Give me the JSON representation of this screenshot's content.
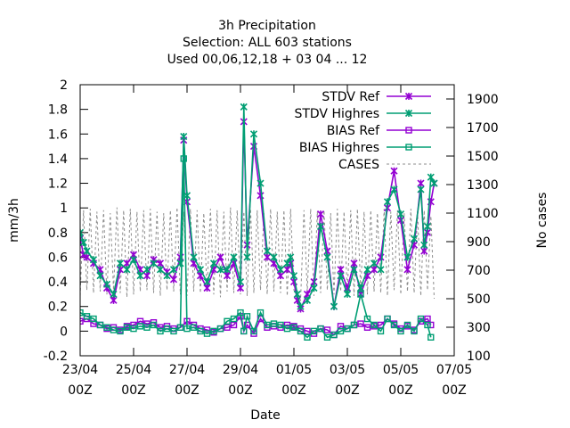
{
  "chart_data": {
    "type": "line",
    "title_lines": [
      "3h Precipitation",
      "Selection: ALL    603 stations",
      "Used  00,06,12,18 + 03 04 ... 12"
    ],
    "xlabel": "Date",
    "ylabel": "mm/3h",
    "y2label": "No cases",
    "x_ticks": [
      {
        "top": "23/04",
        "bottom": "00Z"
      },
      {
        "top": "25/04",
        "bottom": "00Z"
      },
      {
        "top": "27/04",
        "bottom": "00Z"
      },
      {
        "top": "29/04",
        "bottom": "00Z"
      },
      {
        "top": "01/05",
        "bottom": "00Z"
      },
      {
        "top": "03/05",
        "bottom": "00Z"
      },
      {
        "top": "05/05",
        "bottom": "00Z"
      },
      {
        "top": "07/05",
        "bottom": "00Z"
      }
    ],
    "xlim_days": [
      0,
      14
    ],
    "ylim": [
      -0.2,
      2.0
    ],
    "y_ticks": [
      "-0.2",
      "0",
      "0.2",
      "0.4",
      "0.6",
      "0.8",
      "1",
      "1.2",
      "1.4",
      "1.6",
      "1.8",
      "2"
    ],
    "y2lim": [
      100,
      2000
    ],
    "y2_ticks": [
      "100",
      "300",
      "500",
      "700",
      "900",
      "1100",
      "1300",
      "1500",
      "1700",
      "1900"
    ],
    "legend_position": "top-right",
    "series": [
      {
        "name": "STDV Ref",
        "color": "#9400D3",
        "marker": "x",
        "axis": "y",
        "x": [
          0,
          0.125,
          0.25,
          0.5,
          0.75,
          1,
          1.25,
          1.5,
          1.75,
          2,
          2.25,
          2.5,
          2.75,
          3,
          3.25,
          3.5,
          3.75,
          3.875,
          4,
          4.25,
          4.5,
          4.75,
          5,
          5.25,
          5.5,
          5.75,
          6,
          6.125,
          6.25,
          6.5,
          6.75,
          7,
          7.25,
          7.5,
          7.75,
          7.875,
          8,
          8.125,
          8.25,
          8.5,
          8.75,
          9,
          9.25,
          9.5,
          9.75,
          10,
          10.25,
          10.5,
          10.75,
          11,
          11.25,
          11.5,
          11.75,
          12,
          12.25,
          12.5,
          12.75,
          12.875,
          13,
          13.125,
          13.25
        ],
        "y": [
          0.75,
          0.62,
          0.6,
          0.55,
          0.5,
          0.35,
          0.25,
          0.5,
          0.55,
          0.62,
          0.5,
          0.45,
          0.58,
          0.55,
          0.48,
          0.42,
          0.6,
          1.55,
          1.05,
          0.55,
          0.45,
          0.35,
          0.5,
          0.6,
          0.45,
          0.55,
          0.35,
          1.7,
          0.7,
          1.5,
          1.1,
          0.6,
          0.55,
          0.45,
          0.5,
          0.55,
          0.4,
          0.25,
          0.18,
          0.3,
          0.4,
          0.95,
          0.65,
          0.2,
          0.5,
          0.35,
          0.55,
          0.3,
          0.45,
          0.5,
          0.6,
          1.0,
          1.3,
          0.9,
          0.5,
          0.7,
          1.2,
          0.65,
          0.8,
          1.05,
          1.2
        ]
      },
      {
        "name": "STDV Highres",
        "color": "#009E73",
        "marker": "x",
        "axis": "y",
        "x": [
          0,
          0.125,
          0.25,
          0.5,
          0.75,
          1,
          1.25,
          1.5,
          1.75,
          2,
          2.25,
          2.5,
          2.75,
          3,
          3.25,
          3.5,
          3.75,
          3.875,
          4,
          4.25,
          4.5,
          4.75,
          5,
          5.25,
          5.5,
          5.75,
          6,
          6.125,
          6.25,
          6.5,
          6.75,
          7,
          7.25,
          7.5,
          7.75,
          7.875,
          8,
          8.125,
          8.25,
          8.5,
          8.75,
          9,
          9.25,
          9.5,
          9.75,
          10,
          10.25,
          10.5,
          10.75,
          11,
          11.25,
          11.5,
          11.75,
          12,
          12.25,
          12.5,
          12.75,
          12.875,
          13,
          13.125,
          13.25
        ],
        "y": [
          0.8,
          0.72,
          0.65,
          0.58,
          0.45,
          0.38,
          0.3,
          0.55,
          0.5,
          0.58,
          0.45,
          0.5,
          0.55,
          0.5,
          0.45,
          0.5,
          0.55,
          1.58,
          1.1,
          0.6,
          0.5,
          0.4,
          0.55,
          0.5,
          0.5,
          0.6,
          0.4,
          1.82,
          0.6,
          1.6,
          1.2,
          0.65,
          0.6,
          0.5,
          0.55,
          0.6,
          0.45,
          0.3,
          0.2,
          0.25,
          0.35,
          0.85,
          0.6,
          0.2,
          0.45,
          0.3,
          0.5,
          0.35,
          0.5,
          0.55,
          0.5,
          1.05,
          1.15,
          0.95,
          0.6,
          0.75,
          1.15,
          0.7,
          0.85,
          1.25,
          1.2
        ]
      },
      {
        "name": "BIAS Ref",
        "color": "#9400D3",
        "marker": "square",
        "axis": "y",
        "x": [
          0,
          0.25,
          0.5,
          0.75,
          1,
          1.25,
          1.5,
          1.75,
          2,
          2.25,
          2.5,
          2.75,
          3,
          3.25,
          3.5,
          3.75,
          4,
          4.25,
          4.5,
          4.75,
          5,
          5.25,
          5.5,
          5.75,
          6,
          6.125,
          6.25,
          6.5,
          6.75,
          7,
          7.25,
          7.5,
          7.75,
          8,
          8.25,
          8.5,
          8.75,
          9,
          9.25,
          9.5,
          9.75,
          10,
          10.25,
          10.5,
          10.75,
          11,
          11.25,
          11.5,
          11.75,
          12,
          12.25,
          12.5,
          12.75,
          13,
          13.125
        ],
        "y": [
          0.08,
          0.1,
          0.06,
          0.05,
          0.02,
          0.03,
          0.01,
          0.04,
          0.05,
          0.08,
          0.06,
          0.07,
          0.03,
          0.04,
          0.02,
          0.03,
          0.08,
          0.05,
          0.02,
          0.01,
          -0.01,
          0.02,
          0.03,
          0.05,
          0.12,
          0.0,
          0.05,
          -0.02,
          0.1,
          0.03,
          0.04,
          0.03,
          0.05,
          0.04,
          0.02,
          0.0,
          -0.02,
          0.02,
          0.01,
          -0.03,
          0.04,
          0.02,
          0.05,
          0.06,
          0.03,
          0.04,
          0.05,
          0.1,
          0.06,
          0.02,
          0.04,
          0.01,
          0.08,
          0.1,
          0.05
        ]
      },
      {
        "name": "BIAS Highres",
        "color": "#009E73",
        "marker": "square",
        "axis": "y",
        "x": [
          0,
          0.25,
          0.5,
          0.75,
          1,
          1.25,
          1.5,
          1.75,
          2,
          2.25,
          2.5,
          2.75,
          3,
          3.25,
          3.5,
          3.75,
          3.875,
          4,
          4.25,
          4.5,
          4.75,
          5,
          5.25,
          5.5,
          5.75,
          6,
          6.125,
          6.25,
          6.5,
          6.75,
          7,
          7.25,
          7.5,
          7.75,
          8,
          8.25,
          8.5,
          8.75,
          9,
          9.25,
          9.5,
          9.75,
          10,
          10.25,
          10.5,
          10.75,
          11,
          11.25,
          11.5,
          11.75,
          12,
          12.25,
          12.5,
          12.75,
          13,
          13.125
        ],
        "y": [
          0.15,
          0.12,
          0.1,
          0.05,
          0.03,
          0.01,
          0.0,
          0.03,
          0.02,
          0.04,
          0.03,
          0.05,
          0.0,
          0.02,
          0.0,
          0.03,
          1.4,
          0.02,
          0.03,
          0.0,
          -0.02,
          0.0,
          0.02,
          0.08,
          0.1,
          0.15,
          0.0,
          0.12,
          0.0,
          0.15,
          0.05,
          0.06,
          0.05,
          0.02,
          0.03,
          0.0,
          -0.05,
          0.0,
          0.02,
          -0.05,
          -0.03,
          0.0,
          0.02,
          0.05,
          0.3,
          0.1,
          0.05,
          0.0,
          0.1,
          0.05,
          0.0,
          0.05,
          0.0,
          0.1,
          0.05,
          -0.05
        ]
      },
      {
        "name": "CASES",
        "color": "#8c8c8c",
        "marker": "none",
        "dash": true,
        "axis": "y2",
        "x": [
          0,
          0.125,
          0.25,
          0.375,
          0.5,
          0.625,
          0.75,
          0.875,
          1,
          1.125,
          1.25,
          1.375,
          1.5,
          1.625,
          1.75,
          1.875,
          2,
          2.125,
          2.25,
          2.375,
          2.5,
          2.625,
          2.75,
          2.875,
          3,
          3.125,
          3.25,
          3.375,
          3.5,
          3.625,
          3.75,
          3.875,
          4,
          4.125,
          4.25,
          4.375,
          4.5,
          4.625,
          4.75,
          4.875,
          5,
          5.125,
          5.25,
          5.375,
          5.5,
          5.625,
          5.75,
          5.875,
          6,
          6.125,
          6.25,
          6.375,
          6.5,
          6.625,
          6.75,
          6.875,
          7,
          7.125,
          7.25,
          7.375,
          7.5,
          7.625,
          7.75,
          7.875,
          8,
          8.25,
          8.375,
          8.5,
          8.625,
          8.75,
          8.875,
          9,
          9.125,
          9.25,
          9.375,
          9.5,
          9.625,
          9.75,
          9.875,
          10,
          10.125,
          10.25,
          10.375,
          10.5,
          10.625,
          10.75,
          10.875,
          11,
          11.125,
          11.25,
          11.375,
          11.5,
          11.625,
          11.75,
          11.875,
          12,
          12.125,
          12.25,
          12.375,
          12.5,
          12.625,
          12.75,
          12.875,
          13,
          13.125,
          13.25
        ],
        "y": [
          520,
          1120,
          560,
          1130,
          540,
          1110,
          550,
          1120,
          530,
          1100,
          560,
          1140,
          540,
          1120,
          510,
          1130,
          530,
          1110,
          550,
          1120,
          560,
          1130,
          540,
          1110,
          520,
          1100,
          560,
          1120,
          550,
          1140,
          530,
          1110,
          520,
          1130,
          550,
          1120,
          540,
          1100,
          560,
          1130,
          530,
          1120,
          510,
          1110,
          550,
          1140,
          540,
          1120,
          530,
          1110,
          520,
          1130,
          540,
          1120,
          560,
          1100,
          530,
          1130,
          550,
          1110,
          540,
          1120,
          520,
          1130,
          560,
          490,
          1120,
          550,
          1130,
          520,
          1110,
          540,
          1120,
          560,
          1100,
          530,
          1130,
          550,
          1110,
          540,
          1120,
          520,
          1130,
          560,
          1110,
          530,
          1120,
          550,
          1100,
          540,
          1130,
          520,
          1110,
          560,
          1120,
          530,
          1100,
          550,
          1130,
          540,
          1110,
          520,
          1120,
          560,
          1080,
          500
        ]
      }
    ]
  }
}
